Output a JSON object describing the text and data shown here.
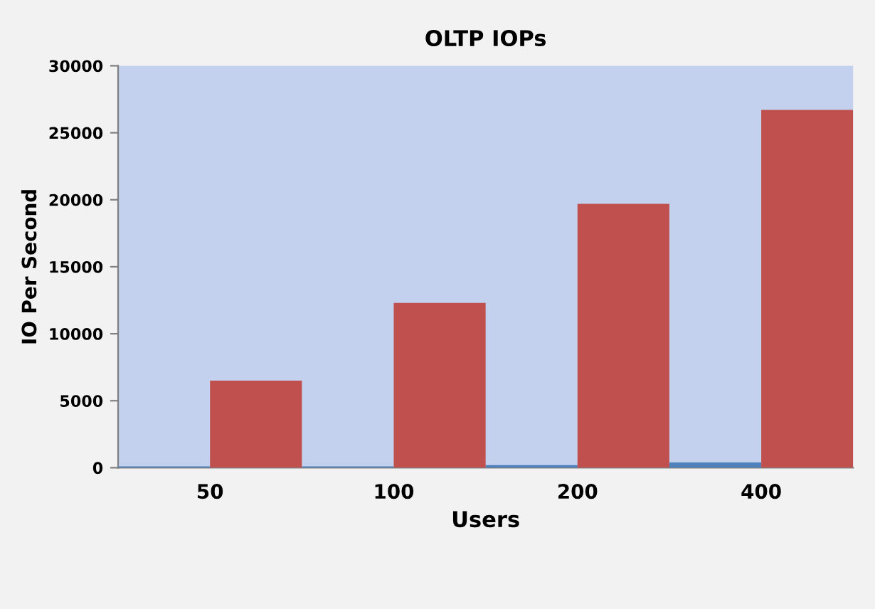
{
  "chart_data": {
    "type": "bar",
    "title": "OLTP IOPs",
    "xlabel": "Users",
    "ylabel": "IO Per Second",
    "categories": [
      "50",
      "100",
      "200",
      "400"
    ],
    "series": [
      {
        "color": "#4f81bd",
        "values": [
          100,
          100,
          200,
          400
        ]
      },
      {
        "color": "#c0504d",
        "values": [
          6500,
          12300,
          19700,
          26700
        ]
      }
    ],
    "ylim": [
      0,
      30000
    ],
    "yticks": [
      0,
      5000,
      10000,
      15000,
      20000,
      25000,
      30000
    ],
    "grid": false
  }
}
